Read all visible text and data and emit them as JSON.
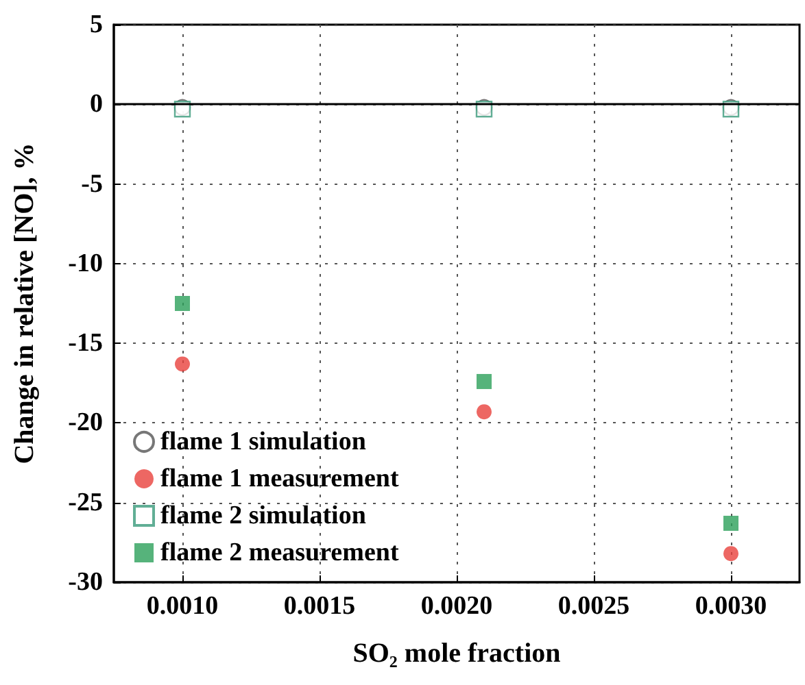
{
  "chart_data": {
    "type": "scatter",
    "xlabel": "SO₂ mole fraction",
    "ylabel": "Change in relative [NO], %",
    "x": [
      0.001,
      0.0021,
      0.003
    ],
    "series": [
      {
        "name": "flame 1 simulation",
        "color": "#555555",
        "marker": "circle",
        "values": [
          -0.2,
          -0.2,
          -0.2
        ]
      },
      {
        "name": "flame 1 measurement",
        "color": "#e8413c",
        "marker": "circle",
        "values": [
          -16.3,
          -19.3,
          -28.2
        ]
      },
      {
        "name": "flame 2 simulation",
        "color": "#3a9a7a",
        "marker": "square",
        "values": [
          -0.3,
          -0.3,
          -0.3
        ]
      },
      {
        "name": "flame 2 measurement",
        "color": "#2ca05a",
        "marker": "square",
        "values": [
          -12.5,
          -17.4,
          -26.3
        ]
      }
    ],
    "xlim": [
      0.00075,
      0.00325
    ],
    "xticks": [
      {
        "value": 0.001,
        "label": "0.0010"
      },
      {
        "value": 0.0015,
        "label": "0.0015"
      },
      {
        "value": 0.002,
        "label": "0.0020"
      },
      {
        "value": 0.0025,
        "label": "0.0025"
      },
      {
        "value": 0.003,
        "label": "0.0030"
      }
    ],
    "ylim": [
      -30,
      5
    ],
    "yticks": [
      -30,
      -25,
      -20,
      -15,
      -10,
      -5,
      0,
      5
    ],
    "ref_lines": [
      {
        "axis": "y",
        "value": 0,
        "color": "#000000",
        "line_style": "solid"
      }
    ],
    "grid": true,
    "legend": "bottom left"
  }
}
